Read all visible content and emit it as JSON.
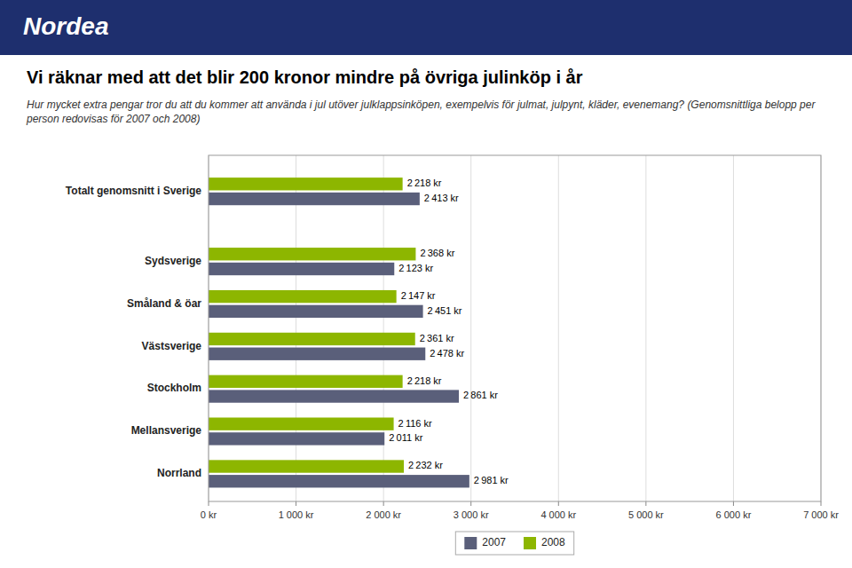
{
  "chart_data": {
    "type": "bar",
    "orientation": "horizontal",
    "title": "Vi räknar med att det blir 200 kronor mindre på övriga julinköp i år",
    "subtitle": "Hur mycket extra pengar tror du att du kommer att använda i jul utöver julklappsinköpen, exempelvis för julmat, julpynt, kläder, evenemang? (Genomsnittliga belopp per person redovisas för 2007 och 2008)",
    "annotations": [
      "Nordea"
    ],
    "categories": [
      "Totalt genomsnitt i Sverige",
      "Sydsverige",
      "Småland & öar",
      "Västsverige",
      "Stockholm",
      "Mellansverige",
      "Norrland"
    ],
    "series": [
      {
        "name": "2007",
        "color": "#5a5f7a",
        "values": [
          2413,
          2123,
          2451,
          2478,
          2861,
          2011,
          2981
        ],
        "value_labels": [
          "2 413 kr",
          "2 123 kr",
          "2 451 kr",
          "2 478 kr",
          "2 861 kr",
          "2 011 kr",
          "2 981 kr"
        ]
      },
      {
        "name": "2008",
        "color": "#8db600",
        "values": [
          2218,
          2368,
          2147,
          2361,
          2218,
          2116,
          2232
        ],
        "value_labels": [
          "2 218 kr",
          "2 368 kr",
          "2 147 kr",
          "2 361 kr",
          "2 218 kr",
          "2 116 kr",
          "2 232 kr"
        ]
      }
    ],
    "xlim": [
      0,
      7000
    ],
    "xticks": [
      {
        "value": 0,
        "label": "0 kr"
      },
      {
        "value": 1000,
        "label": "1 000 kr"
      },
      {
        "value": 2000,
        "label": "2 000 kr"
      },
      {
        "value": 3000,
        "label": "3 000 kr"
      },
      {
        "value": 4000,
        "label": "4 000 kr"
      },
      {
        "value": 5000,
        "label": "5 000 kr"
      },
      {
        "value": 6000,
        "label": "6 000 kr"
      },
      {
        "value": 7000,
        "label": "7 000 kr"
      }
    ],
    "grid": true,
    "data_labels": true,
    "legend": "bottom"
  }
}
